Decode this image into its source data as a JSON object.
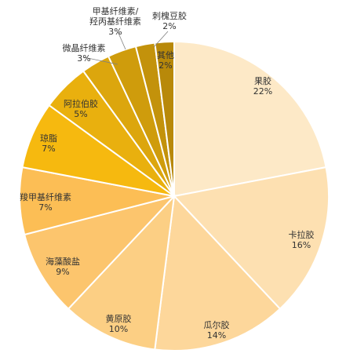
{
  "chart_data": {
    "type": "pie",
    "title": "",
    "slices": [
      {
        "category": "果胶",
        "value": 22,
        "label": "22%",
        "color": "#fde9c7"
      },
      {
        "category": "卡拉胶",
        "value": 16,
        "label": "16%",
        "color": "#fde0b1"
      },
      {
        "category": "瓜尔胶",
        "value": 14,
        "label": "14%",
        "color": "#fdd79b"
      },
      {
        "category": "黄原胶",
        "value": 10,
        "label": "10%",
        "color": "#fccf84"
      },
      {
        "category": "海藻酸盐",
        "value": 9,
        "label": "9%",
        "color": "#fcc56d"
      },
      {
        "category": "羧甲基纤维素",
        "value": 7,
        "label": "7%",
        "color": "#fcbe55"
      },
      {
        "category": "琼脂",
        "value": 7,
        "label": "7%",
        "color": "#f6b90f"
      },
      {
        "category": "阿拉伯胶",
        "value": 5,
        "label": "5%",
        "color": "#e9b00e"
      },
      {
        "category": "微晶纤维素",
        "value": 3,
        "label": "3%",
        "color": "#dca60d"
      },
      {
        "category": "甲基纤维素/羟丙基纤维素",
        "value": 3,
        "label": "3%",
        "color": "#cf9c0c"
      },
      {
        "category": "刺槐豆胶",
        "value": 2,
        "label": "2%",
        "color": "#c3920b"
      },
      {
        "category": "其他",
        "value": 2,
        "label": "2%",
        "color": "#b8890a"
      }
    ]
  }
}
